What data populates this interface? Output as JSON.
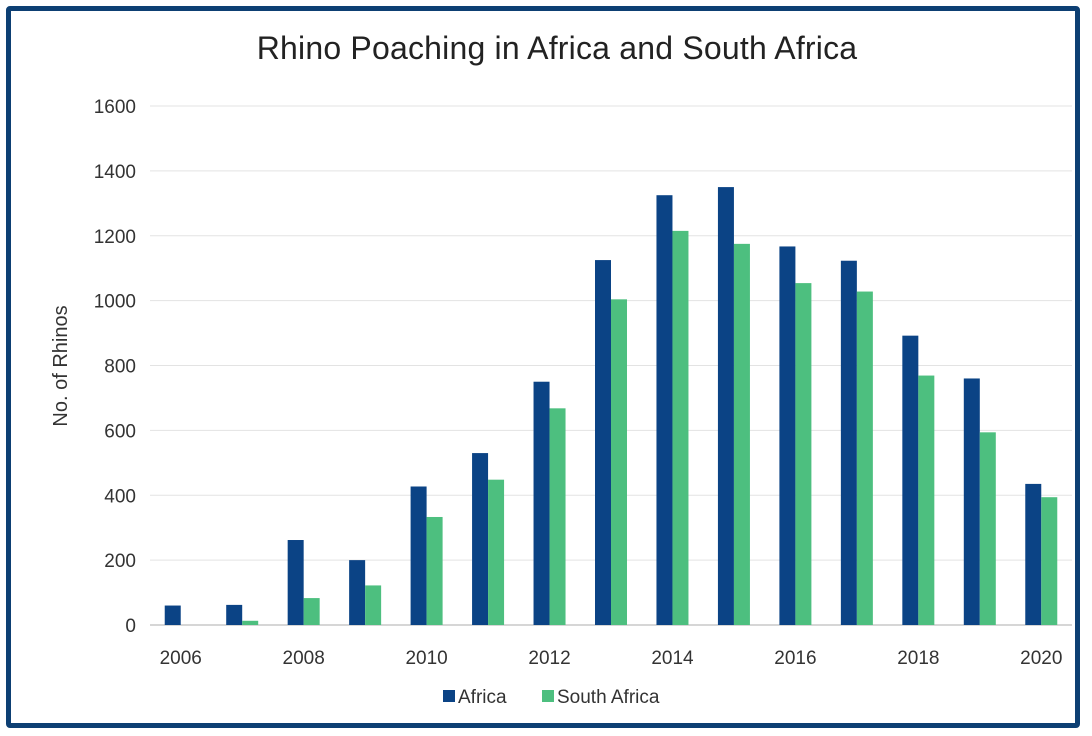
{
  "chart_data": {
    "type": "bar",
    "title": "Rhino Poaching in Africa and South Africa",
    "xlabel": "",
    "ylabel": "No. of Rhinos",
    "ylim": [
      0,
      1600
    ],
    "yticks": [
      "0",
      "200",
      "400",
      "600",
      "800",
      "1000",
      "1200",
      "1400",
      "1600"
    ],
    "categories": [
      "2006",
      "2007",
      "2008",
      "2009",
      "2010",
      "2011",
      "2012",
      "2013",
      "2014",
      "2015",
      "2016",
      "2017",
      "2018",
      "2019",
      "2020"
    ],
    "x_tick_labels": [
      "2006",
      "",
      "2008",
      "",
      "2010",
      "",
      "2012",
      "",
      "2014",
      "",
      "2016",
      "",
      "2018",
      "",
      "2020"
    ],
    "series": [
      {
        "name": "Africa",
        "color": "#0b4385",
        "values": [
          60,
          62,
          262,
          200,
          427,
          530,
          750,
          1125,
          1325,
          1350,
          1167,
          1123,
          892,
          760,
          435
        ]
      },
      {
        "name": "South Africa",
        "color": "#4dbf7f",
        "values": [
          0,
          13,
          83,
          122,
          333,
          448,
          668,
          1004,
          1215,
          1175,
          1054,
          1028,
          769,
          594,
          394
        ]
      }
    ],
    "grid": true,
    "legend_position": "bottom"
  }
}
